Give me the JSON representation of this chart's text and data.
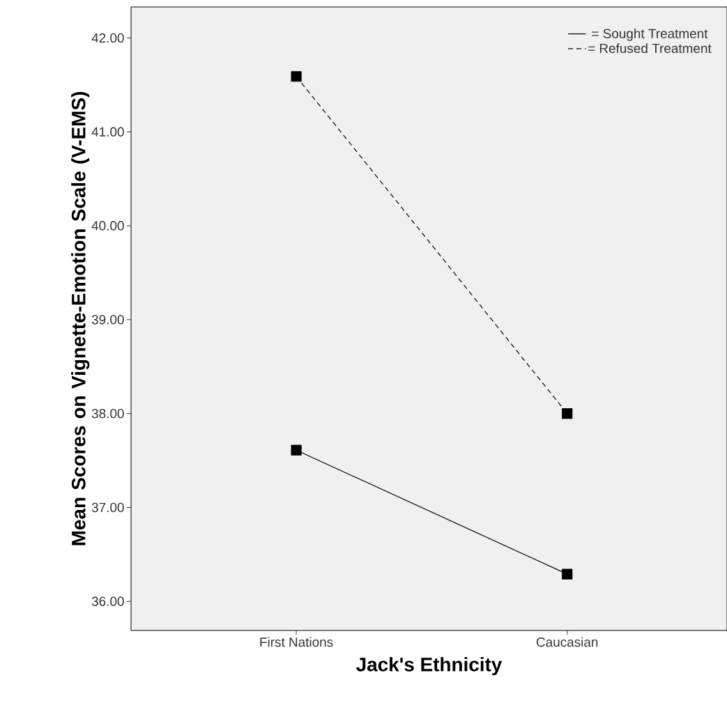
{
  "chart_data": {
    "type": "line",
    "xlabel": "Jack's Ethnicity",
    "ylabel": "Mean Scores on Vignette-Emotion Scale (V-EMS)",
    "categories": [
      "First Nations",
      "Caucasian"
    ],
    "series": [
      {
        "name": "= Sought Treatment",
        "color": "#000000",
        "line_style": "solid",
        "values": [
          37.61,
          36.29
        ]
      },
      {
        "name": "= Refused Treatment",
        "color": "#000000",
        "line_style": "dashed",
        "values": [
          41.59,
          38.0
        ]
      }
    ],
    "ylim": [
      35.69,
      42.33
    ],
    "yticks": [
      {
        "value": 36,
        "label": "36.00"
      },
      {
        "value": 37,
        "label": "37.00"
      },
      {
        "value": 38,
        "label": "38.00"
      },
      {
        "value": 39,
        "label": "39.00"
      },
      {
        "value": 40,
        "label": "40.00"
      },
      {
        "value": 41,
        "label": "41.00"
      },
      {
        "value": 42,
        "label": "42.00"
      }
    ],
    "marker": "square",
    "legend": "top right"
  }
}
